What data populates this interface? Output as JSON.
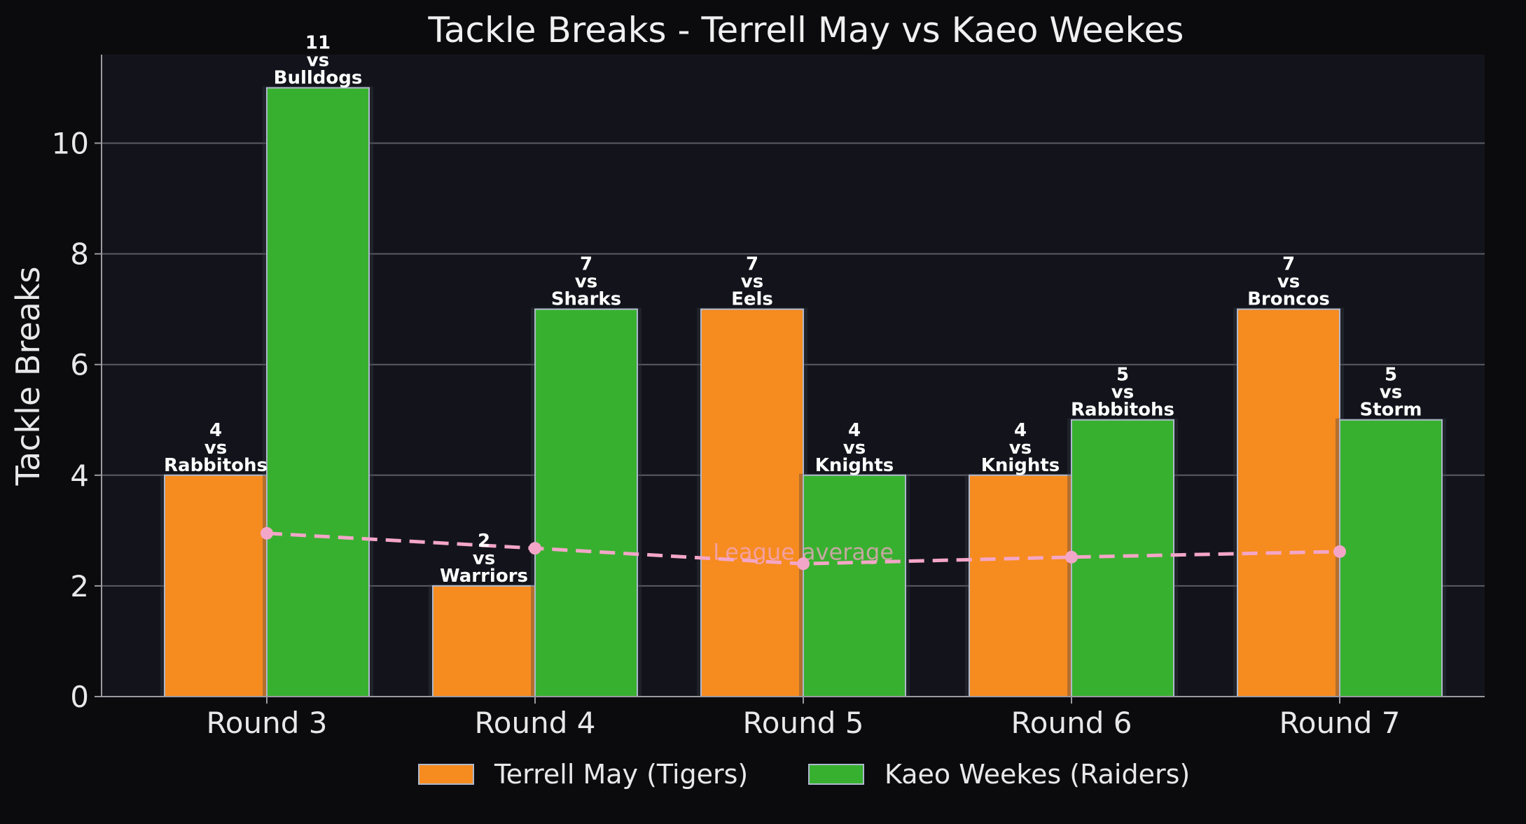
{
  "chart_data": {
    "type": "bar",
    "title": "Tackle Breaks - Terrell May vs Kaeo Weekes",
    "xlabel": "",
    "ylabel": "Tackle Breaks",
    "ylim": [
      0,
      11.6
    ],
    "yticks": [
      "0",
      "2",
      "4",
      "6",
      "8",
      "10"
    ],
    "grid": "horizontal",
    "legend_position": "bottom",
    "categories": [
      "Round 3",
      "Round 4",
      "Round 5",
      "Round 6",
      "Round 7"
    ],
    "series": [
      {
        "name": "Terrell May (Tigers)",
        "color": "#f68b1f",
        "values": [
          4,
          2,
          7,
          4,
          7
        ],
        "opponents": [
          "Rabbitohs",
          "Warriors",
          "Eels",
          "Knights",
          "Broncos"
        ]
      },
      {
        "name": "Kaeo Weekes (Raiders)",
        "color": "#38b02f",
        "values": [
          11,
          7,
          4,
          5,
          5
        ],
        "opponents": [
          "Bulldogs",
          "Sharks",
          "Knights",
          "Rabbitohs",
          "Storm"
        ]
      }
    ],
    "vs_word": "vs",
    "league_average": {
      "label": "League average",
      "color": "#f4a6c8",
      "values": [
        2.95,
        2.68,
        2.4,
        2.52,
        2.62
      ]
    }
  }
}
